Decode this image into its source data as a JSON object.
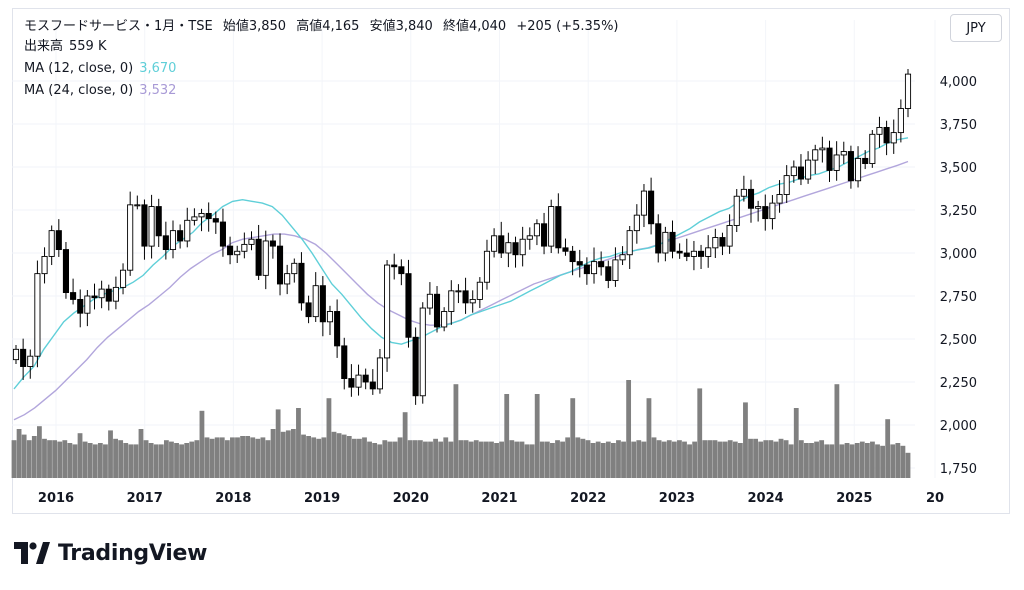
{
  "header": {
    "symbol_line": "モスフードサービス・1月・TSE",
    "open_label": "始値",
    "open": "3,850",
    "high_label": "高値",
    "high": "4,165",
    "low_label": "安値",
    "low": "3,840",
    "close_label": "終値",
    "close": "4,040",
    "change": "+205 (+5.35%)",
    "volume_label": "出来高",
    "volume": "559 K",
    "ma1_label": "MA (12, close, 0)",
    "ma1_value": "3,670",
    "ma2_label": "MA (24, close, 0)",
    "ma2_value": "3,532"
  },
  "currency": "JPY",
  "brand": "TradingView",
  "colors": {
    "ma12": "#5fcfd8",
    "ma24": "#b2a6dc",
    "volume": "#808080",
    "up_candle": "#ffffff",
    "down_candle": "#000000"
  },
  "chart_data": {
    "type": "candlestick",
    "interval": "1 month",
    "y_ticks": [
      "4,000",
      "3,750",
      "3,500",
      "3,250",
      "3,000",
      "2,750",
      "2,500",
      "2,250",
      "2,000",
      "1,750"
    ],
    "ylim": [
      1700,
      4200
    ],
    "x_ticks": [
      "2016",
      "2017",
      "2018",
      "2019",
      "2020",
      "2021",
      "2022",
      "2023",
      "2024",
      "2025",
      "20"
    ],
    "x_range": [
      "2015-08",
      "2025-08"
    ],
    "series": [
      {
        "name": "price",
        "close": [
          2440,
          2340,
          2400,
          2880,
          2980,
          3130,
          3020,
          2770,
          2730,
          2650,
          2750,
          2740,
          2790,
          2720,
          2800,
          2900,
          3280,
          3280,
          3040,
          3270,
          3100,
          3020,
          3130,
          3070,
          3190,
          3210,
          3230,
          3200,
          3180,
          3040,
          2990,
          3010,
          3050,
          3080,
          2870,
          3070,
          3040,
          2820,
          2880,
          2940,
          2710,
          2630,
          2810,
          2600,
          2660,
          2460,
          2270,
          2220,
          2290,
          2250,
          2210,
          2390,
          2930,
          2920,
          2880,
          2510,
          2170,
          2680,
          2760,
          2570,
          2660,
          2780,
          2780,
          2710,
          2730,
          2830,
          3010,
          3100,
          3000,
          3060,
          2990,
          3080,
          3100,
          3170,
          3040,
          3270,
          3030,
          3010,
          2950,
          2930,
          2880,
          2950,
          2920,
          2840,
          2960,
          2990,
          3130,
          3220,
          3360,
          3170,
          3000,
          3120,
          3010,
          3000,
          2980,
          3010,
          2980,
          3030,
          3090,
          3040,
          3160,
          3330,
          3370,
          3260,
          3270,
          3200,
          3290,
          3340,
          3450,
          3500,
          3430,
          3540,
          3600,
          3610,
          3480,
          3570,
          3590,
          3420,
          3550,
          3520,
          3690,
          3730,
          3640,
          3700,
          3840,
          4040
        ]
      },
      {
        "name": "MA (12, close, 0)",
        "values": [
          2210,
          2280,
          2340,
          2440,
          2520,
          2600,
          2650,
          2690,
          2730,
          2760,
          2780,
          2800,
          2830,
          2870,
          2930,
          2980,
          3040,
          3080,
          3120,
          3180,
          3220,
          3270,
          3300,
          3310,
          3300,
          3290,
          3270,
          3220,
          3150,
          3080,
          3000,
          2910,
          2820,
          2760,
          2690,
          2620,
          2560,
          2510,
          2480,
          2470,
          2490,
          2510,
          2540,
          2570,
          2590,
          2610,
          2640,
          2660,
          2680,
          2700,
          2720,
          2750,
          2780,
          2810,
          2840,
          2870,
          2890,
          2920,
          2950,
          2970,
          2980,
          3000,
          3010,
          3020,
          3030,
          3050,
          3080,
          3110,
          3140,
          3180,
          3210,
          3240,
          3260,
          3300,
          3330,
          3350,
          3380,
          3400,
          3410,
          3430,
          3450,
          3460,
          3480,
          3500,
          3530,
          3560,
          3590,
          3610,
          3640,
          3660,
          3670
        ]
      },
      {
        "name": "MA (24, close, 0)",
        "values": [
          2030,
          2060,
          2100,
          2150,
          2200,
          2260,
          2320,
          2380,
          2450,
          2510,
          2560,
          2610,
          2660,
          2700,
          2750,
          2800,
          2860,
          2910,
          2950,
          2990,
          3020,
          3060,
          3080,
          3090,
          3100,
          3110,
          3110,
          3100,
          3080,
          3050,
          3000,
          2940,
          2880,
          2820,
          2760,
          2710,
          2670,
          2640,
          2610,
          2590,
          2580,
          2580,
          2590,
          2610,
          2640,
          2670,
          2700,
          2730,
          2760,
          2790,
          2820,
          2840,
          2860,
          2880,
          2900,
          2920,
          2940,
          2960,
          2980,
          3000,
          3020,
          3030,
          3050,
          3070,
          3090,
          3110,
          3130,
          3150,
          3170,
          3190,
          3210,
          3230,
          3250,
          3270,
          3290,
          3310,
          3330,
          3350,
          3370,
          3390,
          3410,
          3430,
          3450,
          3470,
          3490,
          3510,
          3532
        ]
      },
      {
        "name": "volume",
        "values": [
          1.35,
          1.75,
          1.55,
          1.35,
          1.5,
          1.85,
          1.4,
          1.35,
          1.35,
          1.3,
          1.35,
          1.25,
          1.2,
          1.6,
          1.3,
          1.25,
          1.2,
          1.25,
          1.2,
          1.7,
          1.4,
          1.35,
          1.25,
          1.2,
          1.2,
          1.75,
          1.35,
          1.25,
          1.2,
          1.2,
          1.35,
          1.3,
          1.25,
          1.2,
          1.25,
          1.3,
          1.35,
          2.4,
          1.45,
          1.4,
          1.45,
          1.45,
          1.35,
          1.45,
          1.45,
          1.5,
          1.5,
          1.45,
          1.4,
          1.45,
          1.35,
          1.75,
          2.45,
          1.65,
          1.7,
          1.75,
          2.5,
          1.55,
          1.5,
          1.45,
          1.4,
          1.45,
          2.85,
          1.65,
          1.6,
          1.55,
          1.5,
          1.4,
          1.4,
          1.45,
          1.3,
          1.25,
          1.2,
          1.35,
          1.3,
          1.3,
          1.45,
          2.35,
          1.35,
          1.35,
          1.35,
          1.3,
          1.3,
          1.4,
          1.3,
          1.45,
          1.3,
          3.35,
          1.35,
          1.35,
          1.3,
          1.35,
          1.3,
          1.3,
          1.3,
          1.25,
          1.3,
          3.0,
          1.35,
          1.3,
          1.3,
          1.2,
          1.2,
          3.0,
          1.3,
          1.3,
          1.25,
          1.35,
          1.3,
          1.45,
          2.85,
          1.45,
          1.4,
          1.35,
          1.25,
          1.3,
          1.25,
          1.3,
          1.25,
          1.35,
          1.3,
          3.5,
          1.3,
          1.35,
          1.3,
          2.85,
          1.45,
          1.35,
          1.3,
          1.35,
          1.3,
          1.35,
          1.3,
          1.2,
          1.3,
          3.2,
          1.35,
          1.35,
          1.35,
          1.3,
          1.3,
          1.35,
          1.3,
          1.25,
          2.7,
          1.4,
          1.4,
          1.3,
          1.35,
          1.35,
          1.3,
          1.4,
          1.35,
          1.2,
          2.5,
          1.35,
          1.25,
          1.25,
          1.3,
          1.35,
          1.2,
          1.2,
          3.35,
          1.2,
          1.25,
          1.2,
          1.25,
          1.3,
          1.25,
          1.3,
          1.2,
          1.15,
          2.1,
          1.2,
          1.25,
          1.15,
          0.9
        ]
      }
    ]
  }
}
